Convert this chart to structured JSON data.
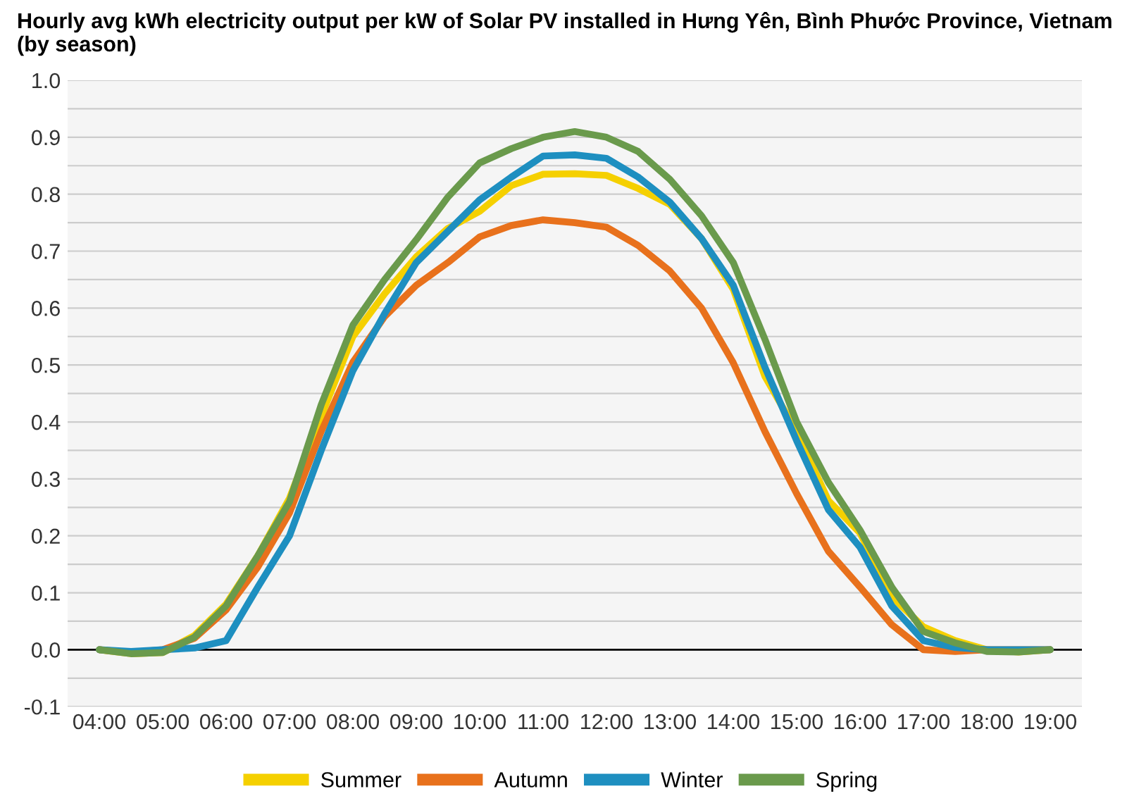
{
  "chart_data": {
    "type": "line",
    "title": "Hourly avg kWh electricity output per kW of Solar PV installed in Hưng Yên, Bình Phước Province, Vietnam (by season)",
    "x": [
      4,
      4.5,
      5,
      5.5,
      6,
      6.5,
      7,
      7.5,
      8,
      8.5,
      9,
      9.5,
      10,
      10.5,
      11,
      11.5,
      12,
      12.5,
      13,
      13.5,
      14,
      14.5,
      15,
      15.5,
      16,
      16.5,
      17,
      17.5,
      18,
      18.5,
      19
    ],
    "series": [
      {
        "name": "Summer",
        "color": "#f5d000",
        "values": [
          0,
          -0.007,
          -0.005,
          0.025,
          0.08,
          0.165,
          0.266,
          0.41,
          0.55,
          0.625,
          0.69,
          0.74,
          0.77,
          0.815,
          0.835,
          0.836,
          0.833,
          0.81,
          0.782,
          0.722,
          0.633,
          0.48,
          0.383,
          0.262,
          0.205,
          0.093,
          0.04,
          0.016,
          0,
          -0.004,
          0
        ]
      },
      {
        "name": "Autumn",
        "color": "#e8711c",
        "values": [
          0,
          -0.005,
          0,
          0.02,
          0.07,
          0.145,
          0.24,
          0.383,
          0.505,
          0.585,
          0.64,
          0.68,
          0.725,
          0.745,
          0.755,
          0.75,
          0.742,
          0.71,
          0.665,
          0.6,
          0.504,
          0.383,
          0.274,
          0.173,
          0.11,
          0.044,
          0,
          -0.003,
          0,
          0,
          0
        ]
      },
      {
        "name": "Winter",
        "color": "#1e8fc0",
        "values": [
          0,
          -0.003,
          0,
          0.003,
          0.016,
          0.11,
          0.2,
          0.35,
          0.49,
          0.59,
          0.68,
          0.735,
          0.79,
          0.83,
          0.867,
          0.869,
          0.863,
          0.83,
          0.786,
          0.722,
          0.64,
          0.496,
          0.367,
          0.246,
          0.18,
          0.077,
          0.016,
          0.004,
          0,
          0,
          0
        ]
      },
      {
        "name": "Spring",
        "color": "#6a9a4c",
        "values": [
          0,
          -0.007,
          -0.005,
          0.022,
          0.077,
          0.165,
          0.26,
          0.43,
          0.57,
          0.65,
          0.72,
          0.795,
          0.855,
          0.88,
          0.9,
          0.91,
          0.9,
          0.875,
          0.826,
          0.762,
          0.68,
          0.545,
          0.4,
          0.294,
          0.21,
          0.11,
          0.032,
          0.012,
          -0.003,
          -0.004,
          0
        ]
      }
    ],
    "xlim": [
      3.5,
      19.5
    ],
    "xticks": [
      {
        "value": 4,
        "label": "04:00"
      },
      {
        "value": 5,
        "label": "05:00"
      },
      {
        "value": 6,
        "label": "06:00"
      },
      {
        "value": 7,
        "label": "07:00"
      },
      {
        "value": 8,
        "label": "08:00"
      },
      {
        "value": 9,
        "label": "09:00"
      },
      {
        "value": 10,
        "label": "10:00"
      },
      {
        "value": 11,
        "label": "11:00"
      },
      {
        "value": 12,
        "label": "12:00"
      },
      {
        "value": 13,
        "label": "13:00"
      },
      {
        "value": 14,
        "label": "14:00"
      },
      {
        "value": 15,
        "label": "15:00"
      },
      {
        "value": 16,
        "label": "16:00"
      },
      {
        "value": 17,
        "label": "17:00"
      },
      {
        "value": 18,
        "label": "18:00"
      },
      {
        "value": 19,
        "label": "19:00"
      }
    ],
    "ylim": [
      -0.1,
      1.0
    ],
    "yticks": [
      -0.1,
      {
        "value": -0.05,
        "label": null
      },
      {
        "value": 0,
        "label": "0.0"
      },
      {
        "value": 0.05,
        "label": null
      },
      0.1,
      {
        "value": 0.15,
        "label": null
      },
      0.2,
      {
        "value": 0.25,
        "label": null
      },
      0.3,
      {
        "value": 0.35,
        "label": null
      },
      0.4,
      {
        "value": 0.45,
        "label": null
      },
      0.5,
      {
        "value": 0.55,
        "label": null
      },
      0.6,
      {
        "value": 0.65,
        "label": null
      },
      0.7,
      {
        "value": 0.75,
        "label": null
      },
      0.8,
      {
        "value": 0.85,
        "label": null
      },
      0.9,
      {
        "value": 0.95,
        "label": null
      },
      {
        "value": 1,
        "label": "1.0"
      }
    ],
    "ref_lines": [
      {
        "axis": "y",
        "value": 0,
        "color": "#000000"
      }
    ],
    "grid": "y",
    "legend": "bottom",
    "marker": "none",
    "line_style": "solid"
  }
}
